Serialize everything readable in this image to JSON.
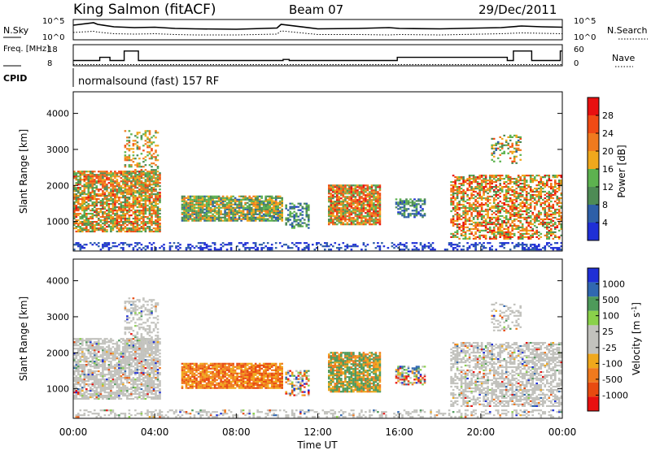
{
  "header": {
    "station": "King Salmon (fitACF)",
    "beam": "Beam 07",
    "date": "29/Dec/2011"
  },
  "colors": {
    "power_scale": [
      "#1f2fd6",
      "#2e5fa8",
      "#4e8b55",
      "#5db24f",
      "#f0a81c",
      "#f07a1e",
      "#f04a14",
      "#e81010"
    ],
    "velocity_scale": [
      "#1f2fd6",
      "#3168b0",
      "#4e9a5a",
      "#8ad14a",
      "#c2c2bd",
      "#c2c2bd",
      "#f0a81c",
      "#f07a1e",
      "#e84a10",
      "#e81010"
    ],
    "ground_scatter": "#c2c2bd"
  },
  "chart_data": [
    {
      "type": "line",
      "name": "noise-panel",
      "left_label": "N.Sky",
      "right_label": "N.Search",
      "left_ticks": [
        "10^5",
        "10^0"
      ],
      "right_ticks": [
        "10^5",
        "10^0"
      ],
      "x": [
        0,
        1,
        1.2,
        2,
        3,
        4,
        5,
        6,
        8,
        10,
        10.2,
        12,
        14,
        15.5,
        16,
        18,
        20,
        21,
        22,
        23,
        24
      ],
      "series": [
        {
          "values": [
            3.6,
            4.2,
            3.8,
            3.2,
            3.0,
            3.1,
            2.8,
            2.7,
            2.6,
            2.9,
            3.8,
            2.7,
            2.8,
            3.0,
            2.8,
            2.7,
            2.9,
            3.0,
            3.4,
            3.2,
            3.1
          ]
        },
        {
          "values": [
            1.8,
            2.1,
            1.9,
            1.5,
            1.4,
            1.5,
            1.3,
            1.2,
            1.2,
            1.4,
            2.2,
            1.3,
            1.3,
            1.2,
            1.3,
            1.2,
            1.4,
            1.5,
            1.7,
            1.6,
            1.5
          ]
        }
      ],
      "ylim": [
        0,
        5
      ]
    },
    {
      "type": "line",
      "name": "frequency-panel",
      "left_label": "Freq. [MHz]",
      "right_label": "Nave",
      "left_ticks": [
        "18",
        "8"
      ],
      "right_ticks": [
        "60",
        "0"
      ],
      "x": [
        0,
        1,
        1.3,
        1.8,
        2.3,
        2.5,
        3.2,
        5.2,
        6.0,
        10.3,
        10.6,
        14.0,
        15.6,
        15.9,
        21.3,
        21.6,
        22.5,
        23.9,
        24
      ],
      "series": [
        {
          "values": [
            10.5,
            10.5,
            12,
            10.5,
            10.5,
            15,
            10.5,
            10.5,
            10.5,
            11,
            10.5,
            10.5,
            10.5,
            12,
            10.5,
            15,
            10.5,
            15,
            15
          ]
        }
      ],
      "ylim": [
        8,
        18
      ]
    },
    {
      "type": "text",
      "name": "cpid-panel",
      "label": "CPID",
      "text": "normalsound (fast) 157 RF"
    },
    {
      "type": "heatmap",
      "name": "power-panel",
      "ylabel": "Slant Range [km]",
      "y_ticks": [
        1000,
        2000,
        3000,
        4000
      ],
      "colorbar_label": "Power [dB]",
      "colorbar_ticks": [
        4,
        8,
        12,
        16,
        20,
        24,
        28
      ],
      "ylim": [
        180,
        4600
      ],
      "xlim": [
        0,
        24
      ]
    },
    {
      "type": "heatmap",
      "name": "velocity-panel",
      "ylabel": "Slant Range [km]",
      "y_ticks": [
        1000,
        2000,
        3000,
        4000
      ],
      "colorbar_label": "Velocity [m s^-1]",
      "colorbar_ticks": [
        1000,
        500,
        100,
        25,
        -25,
        -100,
        -500,
        -1000
      ],
      "ylim": [
        180,
        4600
      ],
      "xlim": [
        0,
        24
      ]
    }
  ],
  "x_axis": {
    "ticks": [
      "00:00",
      "04:00",
      "08:00",
      "12:00",
      "16:00",
      "20:00",
      "00:00"
    ],
    "label": "Time UT"
  }
}
